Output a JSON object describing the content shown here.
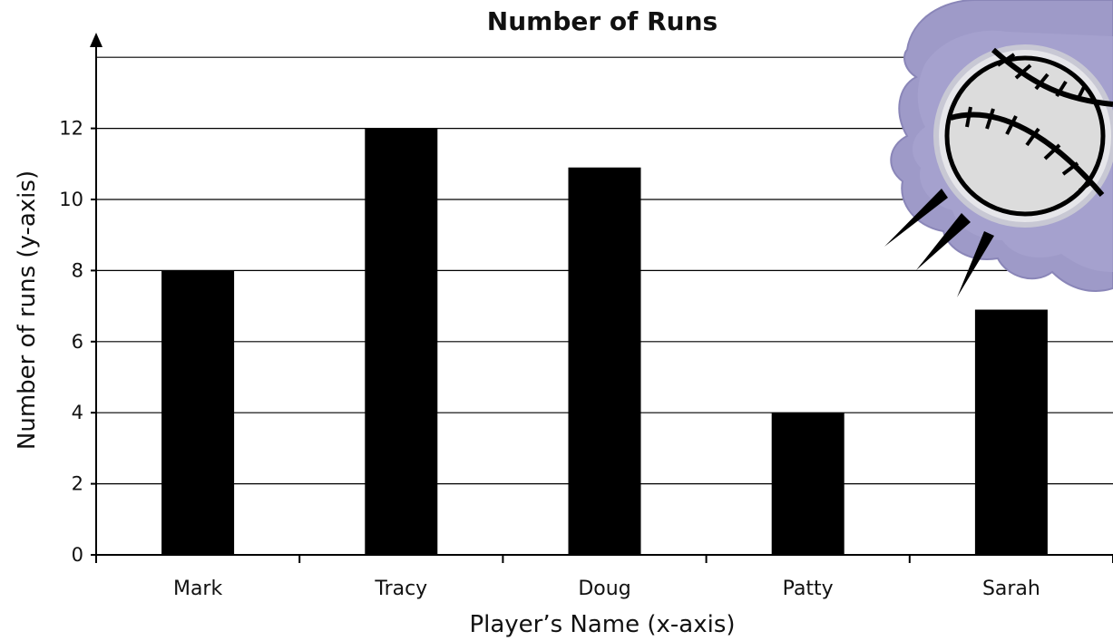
{
  "chart_data": {
    "type": "bar",
    "title": "Number of Runs",
    "xlabel": "Player’s Name (x-axis)",
    "ylabel": "Number of runs (y-axis)",
    "categories": [
      "Mark",
      "Tracy",
      "Doug",
      "Patty",
      "Sarah"
    ],
    "values": [
      8,
      12,
      10.9,
      4,
      6.9
    ],
    "ylim": [
      0,
      14
    ],
    "yticks": [
      "0",
      "2",
      "4",
      "6",
      "8",
      "10",
      "12"
    ],
    "grid": true,
    "bar_color": "#000000"
  },
  "decoration": {
    "icon": "baseball-icon",
    "cloud_color": "#9e9ac8"
  }
}
